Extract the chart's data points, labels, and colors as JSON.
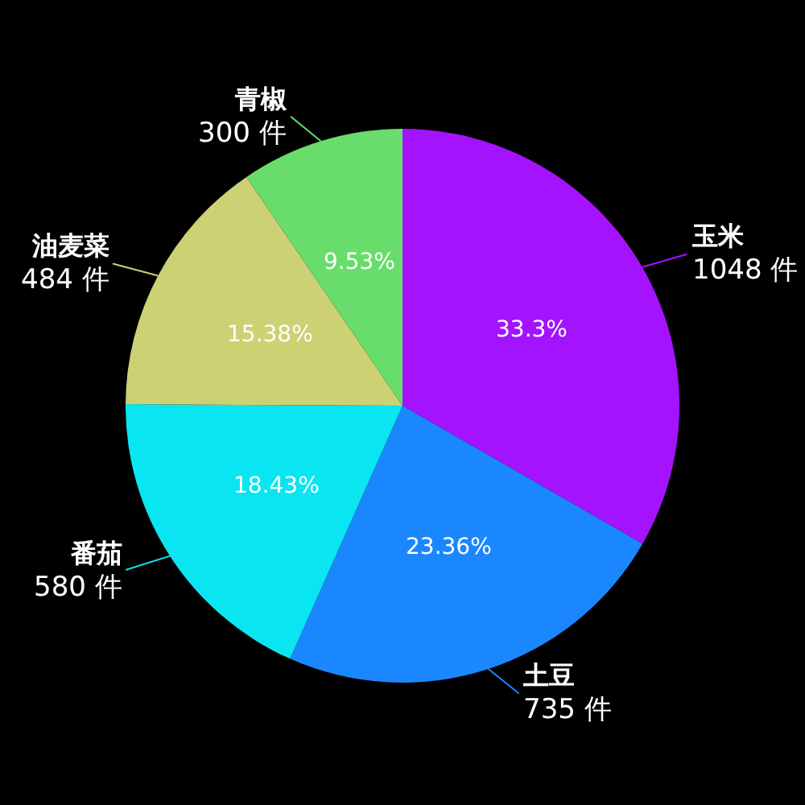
{
  "chart_data": {
    "type": "pie",
    "categories": [
      "玉米",
      "土豆",
      "番茄",
      "油麦菜",
      "青椒"
    ],
    "values": [
      1048,
      735,
      580,
      484,
      300
    ],
    "colors": [
      "#a313fd",
      "#1b87fe",
      "#0ae5f2",
      "#ccd174",
      "#69dd6b"
    ],
    "value_labels": [
      "1048 件",
      "735 件",
      "580 件",
      "484 件",
      "300 件"
    ],
    "annotations": [
      "33.3%",
      "23.36%",
      "18.43%",
      "15.38%",
      "9.53%"
    ]
  }
}
